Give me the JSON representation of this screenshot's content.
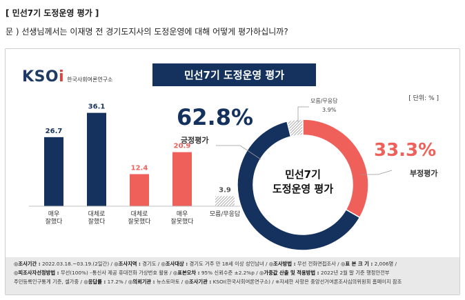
{
  "heading": "[ 민선7기 도정운영 평가 ]",
  "question": "문 )   선생님께서는 이재명 전 경기도지사의 도정운영에 대해 어떻게 평가하십니까?",
  "logo": {
    "mark_a": "K",
    "mark_b": "S",
    "mark_c": "O",
    "mark_d": "i",
    "sub": "한국사회여론연구소"
  },
  "chart_title": "민선7기 도정운영 평가",
  "unit_label": "[ 단위: % ]",
  "summary": {
    "positive_value": "62.8%",
    "positive_label": "긍정평가",
    "negative_value": "33.3%",
    "negative_label": "부정평가",
    "dk_label": "모름/무응답",
    "dk_value": "3.9%",
    "center_line1": "민선7기",
    "center_line2": "도정운영 평가"
  },
  "colors": {
    "navy": "#14325d",
    "red": "#f0605a",
    "hatch": "#9a9a9a",
    "title_bg": "#14325d"
  },
  "chart_data": [
    {
      "type": "bar",
      "categories": [
        "매우\n잘했다",
        "대체로\n잘했다",
        "대체로\n잘못했다",
        "매우\n잘못했다",
        "모름/무응답"
      ],
      "values": [
        26.7,
        36.1,
        12.4,
        20.9,
        3.9
      ],
      "value_labels": [
        "26.7",
        "36.1",
        "12.4",
        "20.9",
        "3.9"
      ],
      "colors": [
        "#14325d",
        "#14325d",
        "#f0605a",
        "#f0605a",
        "hatch"
      ],
      "ylim": [
        0,
        40
      ]
    },
    {
      "type": "pie",
      "categories": [
        "긍정평가",
        "부정평가",
        "모름/무응답"
      ],
      "values": [
        62.8,
        33.3,
        3.9
      ],
      "colors": [
        "#14325d",
        "#f0605a",
        "hatch"
      ],
      "donut": true
    }
  ],
  "footnote": {
    "line1": [
      {
        "k": "◎조사기간 :",
        "v": " 2022.03.18.~03.19.(2일간) / "
      },
      {
        "k": "◎조사지역 :",
        "v": " 경기도 / "
      },
      {
        "k": "◎조사대상 :",
        "v": " 경기도 거주 만 18세 이상 성인남녀 / "
      },
      {
        "k": "◎조사방법 :",
        "v": " 무선 전화면접조사 / "
      },
      {
        "k": "◎표 본 크 기 :",
        "v": " 2,006명 /"
      }
    ],
    "line2": [
      {
        "k": "◎피조사자선정방법 :",
        "v": " 무선(100%) –통신사 제공 휴대전화 가상번호 활용 / "
      },
      {
        "k": "◎표본오차 :",
        "v": " 95% 신뢰수준 ±2.2%p / "
      },
      {
        "k": "◎가중값 산출 및 적용방법 :",
        "v": " 2022년 2월 말 기준 행정안전부"
      }
    ],
    "line3": [
      {
        "k": "",
        "v": "주민등록인구통계 기준, 셀가중 / "
      },
      {
        "k": "◎응답률 :",
        "v": " 17.2% / "
      },
      {
        "k": "◎의뢰기관 :",
        "v": " 뉴스토마토 / "
      },
      {
        "k": "◎조사기관 :",
        "v": " KSOI(한국사회여론연구소) / ※자세한 사항은 중앙선거여론조사심의위원회 홈페이지 참조"
      }
    ]
  }
}
